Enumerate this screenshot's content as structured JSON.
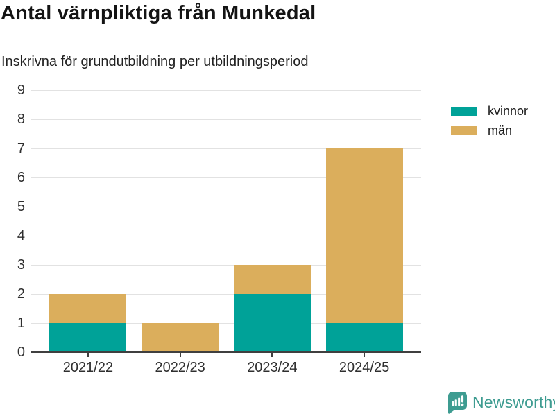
{
  "chart_data": {
    "type": "bar",
    "stacked": true,
    "title": "Antal värnpliktiga från Munkedal",
    "subtitle": "Inskrivna för grundutbildning per utbildningsperiod",
    "categories": [
      "2021/22",
      "2022/23",
      "2023/24",
      "2024/25"
    ],
    "series": [
      {
        "name": "kvinnor",
        "color": "#00A298",
        "values": [
          1,
          0,
          2,
          1
        ]
      },
      {
        "name": "män",
        "color": "#DBAE5C",
        "values": [
          1,
          1,
          1,
          6
        ]
      }
    ],
    "xlabel": "",
    "ylabel": "",
    "ylim": [
      0,
      9
    ],
    "yticks": [
      0,
      1,
      2,
      3,
      4,
      5,
      6,
      7,
      8,
      9
    ],
    "grid": true,
    "legend_position": "top-right"
  },
  "colors": {
    "axis": "#3F3F3F",
    "gridline": "#E2E2E2",
    "tick_text": "#2F2F2F",
    "brand": "#3E9C91"
  },
  "footer": {
    "brand": "Newsworthy",
    "logo_icon": "newsworthy-speech-bubble-bar-chart-icon"
  }
}
